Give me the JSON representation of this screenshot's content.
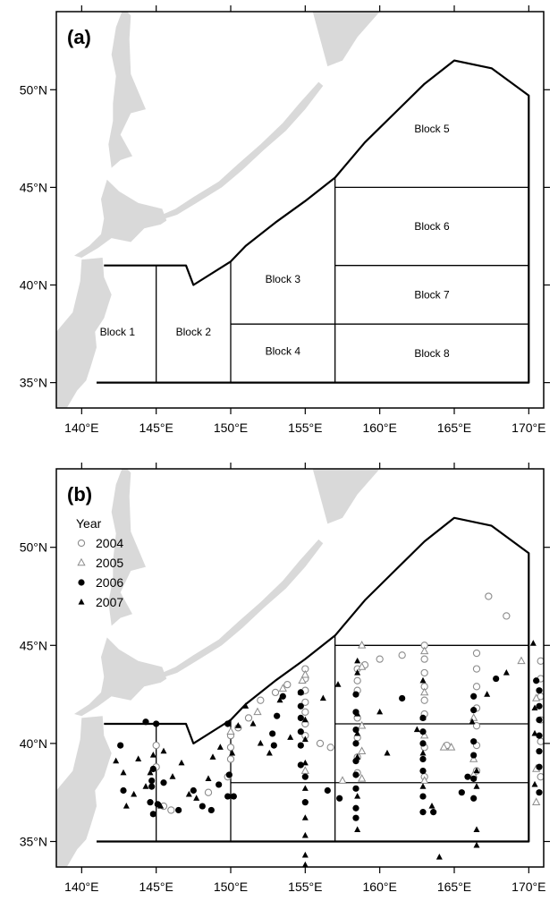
{
  "panels": [
    {
      "tag": "(a)"
    },
    {
      "tag": "(b)"
    }
  ],
  "axes": {
    "x_ticks": [
      "140°E",
      "145°E",
      "150°E",
      "155°E",
      "160°E",
      "165°E",
      "170°E"
    ],
    "x_values": [
      140,
      145,
      150,
      155,
      160,
      165,
      170
    ],
    "y_ticks": [
      "35°N",
      "40°N",
      "45°N",
      "50°N"
    ],
    "y_values": [
      35,
      40,
      45,
      50
    ],
    "lon_range": [
      138.3,
      171
    ],
    "lat_range": [
      33.7,
      54
    ]
  },
  "blocks": [
    {
      "name": "Block 1",
      "lon": 142.4,
      "lat": 37.6
    },
    {
      "name": "Block 2",
      "lon": 147.5,
      "lat": 37.6
    },
    {
      "name": "Block 3",
      "lon": 153.5,
      "lat": 40.3
    },
    {
      "name": "Block 4",
      "lon": 153.5,
      "lat": 36.6
    },
    {
      "name": "Block 5",
      "lon": 163.5,
      "lat": 48.0
    },
    {
      "name": "Block 6",
      "lon": 163.5,
      "lat": 43.0
    },
    {
      "name": "Block 7",
      "lon": 163.5,
      "lat": 39.5
    },
    {
      "name": "Block 8",
      "lon": 163.5,
      "lat": 36.5
    }
  ],
  "legend": {
    "title": "Year",
    "entries": [
      {
        "label": "2004",
        "symbol": "open-circle"
      },
      {
        "label": "2005",
        "symbol": "open-triangle"
      },
      {
        "label": "2006",
        "symbol": "filled-circle"
      },
      {
        "label": "2007",
        "symbol": "filled-triangle"
      }
    ]
  },
  "colors": {
    "land": "#d9d9d9",
    "line": "#000000",
    "open_marker": "#8c8c8c",
    "filled_marker": "#000000"
  },
  "chart_data": {
    "type": "scatter",
    "xlabel": "",
    "ylabel": "",
    "xlim": [
      138.3,
      171
    ],
    "ylim": [
      33.7,
      54
    ],
    "study_area_boundary": [
      [
        141.5,
        41
      ],
      [
        147,
        41
      ],
      [
        147.5,
        40
      ],
      [
        150,
        41.2
      ],
      [
        151,
        42
      ],
      [
        153,
        43.2
      ],
      [
        155,
        44.3
      ],
      [
        157,
        45.5
      ],
      [
        159,
        47.3
      ],
      [
        161,
        48.8
      ],
      [
        163,
        50.3
      ],
      [
        165,
        51.5
      ],
      [
        167.5,
        51.1
      ],
      [
        170,
        49.7
      ],
      [
        170,
        35
      ],
      [
        141,
        35
      ]
    ],
    "block_boundaries": [
      [
        [
          145,
          41
        ],
        [
          145,
          35
        ]
      ],
      [
        [
          150,
          41.2
        ],
        [
          150,
          35
        ]
      ],
      [
        [
          157,
          45.5
        ],
        [
          157,
          35
        ]
      ],
      [
        [
          150,
          38
        ],
        [
          170,
          38
        ]
      ],
      [
        [
          157,
          45
        ],
        [
          170,
          45
        ]
      ],
      [
        [
          157,
          41
        ],
        [
          170,
          41
        ]
      ]
    ],
    "series": [
      {
        "name": "2004",
        "points": [
          [
            145,
            39.9
          ],
          [
            145,
            38.8
          ],
          [
            145.5,
            36.8
          ],
          [
            146,
            36.6
          ],
          [
            148.5,
            37.5
          ],
          [
            149.8,
            38.3
          ],
          [
            150,
            40.4
          ],
          [
            150,
            39.8
          ],
          [
            150,
            39.2
          ],
          [
            150.5,
            40.8
          ],
          [
            151.2,
            41.3
          ],
          [
            152,
            42.2
          ],
          [
            153,
            42.6
          ],
          [
            153.8,
            43.0
          ],
          [
            155,
            43.8
          ],
          [
            155,
            43.3
          ],
          [
            155,
            42.7
          ],
          [
            155,
            42.1
          ],
          [
            155,
            41.6
          ],
          [
            155,
            41.0
          ],
          [
            155,
            40.4
          ],
          [
            156,
            40.0
          ],
          [
            156.7,
            39.8
          ],
          [
            158.5,
            43.8
          ],
          [
            158.5,
            43.2
          ],
          [
            158.5,
            42.7
          ],
          [
            158.5,
            41.3
          ],
          [
            158.5,
            40.3
          ],
          [
            158.5,
            39.3
          ],
          [
            158.5,
            38.5
          ],
          [
            159,
            44.0
          ],
          [
            160,
            44.3
          ],
          [
            161.5,
            44.5
          ],
          [
            163,
            45.0
          ],
          [
            163,
            44.3
          ],
          [
            163,
            43.6
          ],
          [
            163,
            42.9
          ],
          [
            163,
            42.2
          ],
          [
            163,
            41.5
          ],
          [
            163,
            39.8
          ],
          [
            163,
            38.3
          ],
          [
            164.5,
            39.9
          ],
          [
            166.5,
            44.6
          ],
          [
            166.5,
            43.8
          ],
          [
            166.5,
            42.9
          ],
          [
            166.5,
            41.8
          ],
          [
            166.5,
            40.9
          ],
          [
            166.5,
            39.9
          ],
          [
            166.5,
            38.6
          ],
          [
            167.3,
            47.5
          ],
          [
            168.5,
            46.5
          ],
          [
            170.8,
            44.2
          ],
          [
            170.8,
            43.3
          ],
          [
            170.8,
            42.4
          ],
          [
            170.8,
            41.2
          ],
          [
            170.8,
            40.1
          ],
          [
            170.8,
            38.3
          ]
        ]
      },
      {
        "name": "2005",
        "points": [
          [
            150,
            40.6
          ],
          [
            151.8,
            41.6
          ],
          [
            153.5,
            42.8
          ],
          [
            154.8,
            43.2
          ],
          [
            155,
            43.5
          ],
          [
            155,
            38.6
          ],
          [
            157.5,
            38.1
          ],
          [
            158.8,
            45.0
          ],
          [
            158.8,
            43.9
          ],
          [
            158.8,
            40.9
          ],
          [
            158.8,
            39.6
          ],
          [
            158.8,
            38.2
          ],
          [
            163,
            44.7
          ],
          [
            163,
            42.6
          ],
          [
            163,
            40.4
          ],
          [
            163,
            38.1
          ],
          [
            164.3,
            39.8
          ],
          [
            164.8,
            39.8
          ],
          [
            166.3,
            41.3
          ],
          [
            166.3,
            39.2
          ],
          [
            166.3,
            38.4
          ],
          [
            169.5,
            44.2
          ],
          [
            170.5,
            42.3
          ],
          [
            170.5,
            38.7
          ],
          [
            170.5,
            37.0
          ]
        ]
      },
      {
        "name": "2006",
        "points": [
          [
            144.3,
            41.1
          ],
          [
            145,
            41.0
          ],
          [
            142.6,
            39.9
          ],
          [
            142.8,
            37.6
          ],
          [
            144.8,
            38.7
          ],
          [
            144.7,
            38.1
          ],
          [
            144.7,
            37.8
          ],
          [
            144.6,
            37.0
          ],
          [
            145.1,
            36.9
          ],
          [
            144.8,
            36.4
          ],
          [
            145.5,
            38.0
          ],
          [
            146.5,
            36.6
          ],
          [
            147.5,
            37.6
          ],
          [
            148.1,
            36.8
          ],
          [
            148.7,
            36.6
          ],
          [
            149.2,
            37.9
          ],
          [
            149.9,
            38.4
          ],
          [
            149.8,
            41.0
          ],
          [
            149.8,
            37.3
          ],
          [
            150.2,
            37.3
          ],
          [
            152.9,
            39.9
          ],
          [
            153.1,
            41.4
          ],
          [
            153.5,
            42.4
          ],
          [
            152.8,
            40.5
          ],
          [
            154.7,
            42.6
          ],
          [
            154.7,
            41.9
          ],
          [
            154.7,
            41.3
          ],
          [
            154.7,
            40.6
          ],
          [
            154.7,
            39.9
          ],
          [
            154.7,
            38.9
          ],
          [
            155,
            38.3
          ],
          [
            155,
            37.0
          ],
          [
            156.5,
            37.6
          ],
          [
            157.3,
            37.2
          ],
          [
            158.4,
            42.5
          ],
          [
            158.4,
            41.6
          ],
          [
            158.4,
            40.7
          ],
          [
            158.4,
            40.0
          ],
          [
            158.4,
            39.1
          ],
          [
            158.4,
            38.4
          ],
          [
            158.4,
            37.7
          ],
          [
            158.4,
            36.7
          ],
          [
            158.4,
            36.2
          ],
          [
            161.5,
            42.3
          ],
          [
            162.9,
            41.3
          ],
          [
            162.9,
            40.6
          ],
          [
            162.9,
            40.0
          ],
          [
            162.9,
            39.2
          ],
          [
            162.9,
            38.6
          ],
          [
            162.9,
            37.3
          ],
          [
            162.9,
            36.5
          ],
          [
            163.6,
            36.5
          ],
          [
            165.5,
            37.5
          ],
          [
            165.9,
            38.3
          ],
          [
            166.3,
            42.4
          ],
          [
            166.3,
            41.7
          ],
          [
            166.3,
            40.1
          ],
          [
            166.3,
            39.4
          ],
          [
            166.3,
            38.2
          ],
          [
            166.3,
            37.2
          ],
          [
            167.8,
            43.3
          ],
          [
            170.5,
            43.2
          ],
          [
            170.7,
            42.7
          ],
          [
            170.7,
            41.9
          ],
          [
            170.7,
            41.2
          ],
          [
            170.7,
            40.4
          ],
          [
            170.7,
            39.6
          ],
          [
            170.7,
            38.8
          ],
          [
            170.7,
            37.5
          ]
        ]
      },
      {
        "name": "2007",
        "points": [
          [
            142.3,
            39.1
          ],
          [
            142.8,
            38.5
          ],
          [
            143,
            36.8
          ],
          [
            143.5,
            37.4
          ],
          [
            143.8,
            39.2
          ],
          [
            144.3,
            37.8
          ],
          [
            144.6,
            38.5
          ],
          [
            144.8,
            39.4
          ],
          [
            145.3,
            36.8
          ],
          [
            145.5,
            39.6
          ],
          [
            146.1,
            38.3
          ],
          [
            146.7,
            39.0
          ],
          [
            147.2,
            37.4
          ],
          [
            147.7,
            37.2
          ],
          [
            148.5,
            38.2
          ],
          [
            148.8,
            39.3
          ],
          [
            149.3,
            39.8
          ],
          [
            150.1,
            39.5
          ],
          [
            150.5,
            40.9
          ],
          [
            151,
            41.9
          ],
          [
            151.5,
            41.0
          ],
          [
            152,
            40.0
          ],
          [
            152.6,
            39.5
          ],
          [
            153.3,
            42.2
          ],
          [
            154,
            40.3
          ],
          [
            154.7,
            42.6
          ],
          [
            155,
            41.2
          ],
          [
            155,
            40.2
          ],
          [
            155,
            39.0
          ],
          [
            155,
            37.7
          ],
          [
            155,
            36.2
          ],
          [
            155,
            35.3
          ],
          [
            155,
            34.3
          ],
          [
            155,
            33.8
          ],
          [
            156.2,
            42.3
          ],
          [
            157.2,
            43.0
          ],
          [
            158.5,
            44.2
          ],
          [
            158.5,
            43.6
          ],
          [
            158.5,
            41.5
          ],
          [
            158.5,
            40.5
          ],
          [
            158.5,
            39.3
          ],
          [
            158.5,
            37.3
          ],
          [
            158.5,
            35.6
          ],
          [
            160,
            41.6
          ],
          [
            160.5,
            39.5
          ],
          [
            162.5,
            40.7
          ],
          [
            162.9,
            43.2
          ],
          [
            162.9,
            41.3
          ],
          [
            162.9,
            39.5
          ],
          [
            162.9,
            37.8
          ],
          [
            163.5,
            36.8
          ],
          [
            164,
            34.2
          ],
          [
            166.2,
            41.1
          ],
          [
            166.5,
            38.6
          ],
          [
            166.5,
            37.8
          ],
          [
            166.5,
            35.6
          ],
          [
            166.5,
            34.8
          ],
          [
            167.2,
            42.5
          ],
          [
            168.5,
            43.6
          ],
          [
            170.3,
            45.1
          ],
          [
            170.4,
            41.8
          ],
          [
            170.4,
            40.5
          ],
          [
            170.4,
            37.9
          ]
        ]
      }
    ]
  }
}
